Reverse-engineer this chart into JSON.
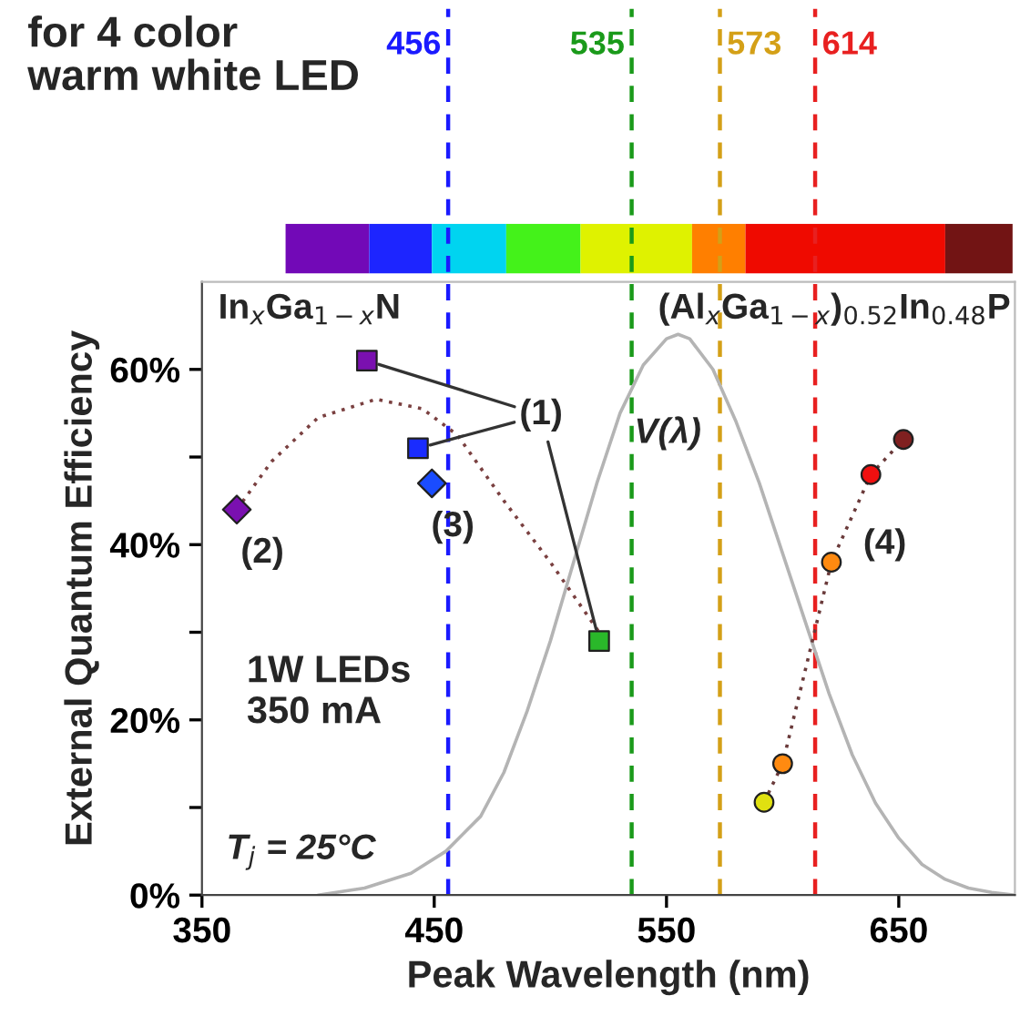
{
  "chart_data": {
    "type": "scatter",
    "title": "for 4 color\nwarm white LED",
    "xlabel": "Peak Wavelength (nm)",
    "ylabel": "External Quantum Efficiency",
    "xlim": [
      350,
      700
    ],
    "xticks": [
      350,
      450,
      550,
      650
    ],
    "ylim": [
      0,
      70
    ],
    "yticks": [
      {
        "value": 0,
        "label": "0%"
      },
      {
        "value": 10,
        "label": null
      },
      {
        "value": 20,
        "label": "20%"
      },
      {
        "value": 30,
        "label": null
      },
      {
        "value": 40,
        "label": "40%"
      },
      {
        "value": 50,
        "label": null
      },
      {
        "value": 60,
        "label": "60%"
      }
    ],
    "grid": false,
    "legend": false,
    "series": [
      {
        "type": "line",
        "color": "#b4b4b4",
        "line_style": "solid",
        "marker": "none",
        "x": [
          400,
          420,
          440,
          455,
          470,
          480,
          490,
          500,
          510,
          520,
          530,
          540,
          550,
          555,
          560,
          570,
          580,
          590,
          600,
          610,
          620,
          630,
          640,
          650,
          660,
          670,
          680,
          690,
          700
        ],
        "values": [
          0,
          0.8,
          2.5,
          5,
          9,
          14,
          21,
          29,
          38,
          47,
          55,
          60.5,
          63.5,
          64,
          63.5,
          60,
          54,
          47,
          39,
          31,
          23,
          16,
          10.5,
          6.5,
          3.5,
          1.8,
          0.8,
          0.3,
          0
        ]
      },
      {
        "type": "line",
        "color": "#7a4040",
        "line_style": "dotted",
        "marker": "none",
        "x": [
          365,
          380,
          400,
          425,
          445,
          460,
          480,
          500,
          521
        ],
        "values": [
          44,
          49.5,
          54.5,
          56.6,
          55.5,
          52.5,
          45,
          38,
          30
        ]
      },
      {
        "marker": "square",
        "colors": [
          "#7a10b0",
          "#1a2cff",
          "#2ab82a"
        ],
        "x": [
          421,
          443,
          521
        ],
        "values": [
          61,
          51,
          29
        ]
      },
      {
        "marker": "diamond",
        "colors": [
          "#7a10b0",
          "#1a4cff"
        ],
        "x": [
          365,
          449
        ],
        "values": [
          44,
          47
        ]
      },
      {
        "type": "line",
        "color": "#6a3a3a",
        "line_style": "dotted",
        "marker": "circle",
        "colors": [
          "#e0e010",
          "#ff8a10",
          "#ff8a10",
          "#f01010",
          "#802020"
        ],
        "x": [
          592,
          600,
          621,
          638,
          652
        ],
        "values": [
          10.6,
          15,
          38,
          48,
          52
        ]
      }
    ],
    "ref_lines": [
      {
        "axis": "x",
        "value": 456,
        "label": "456",
        "color": "#1a1aff",
        "line_style": "dashed"
      },
      {
        "axis": "x",
        "value": 535,
        "label": "535",
        "color": "#1a9a1a",
        "line_style": "dashed"
      },
      {
        "axis": "x",
        "value": 573,
        "label": "573",
        "color": "#d4a017",
        "line_style": "dashed"
      },
      {
        "axis": "x",
        "value": 614,
        "label": "614",
        "color": "#e82020",
        "line_style": "dashed"
      }
    ],
    "annotations": [
      {
        "text": "(1)",
        "x": 421,
        "y": 61
      },
      {
        "text": "(2)",
        "x": 365,
        "y": 44
      },
      {
        "text": "(3)",
        "x": 449,
        "y": 47
      },
      {
        "text": "(4)",
        "x": 621,
        "y": 38
      },
      "In$_{x}$Ga$_{1−x}$N",
      "(Al$_{x}$Ga$_{1−x}$)$_{0.52}$In$_{0.48}$P",
      "V(λ)",
      "1W LEDs\n350 mA",
      "T$_{j}$ = 25°C"
    ]
  }
}
